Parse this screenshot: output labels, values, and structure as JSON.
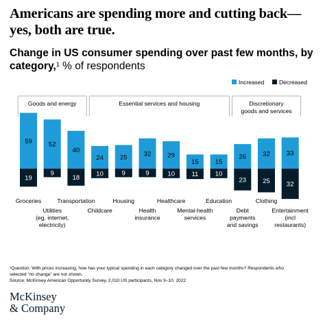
{
  "headline": "Americans are spending more and cutting back—yes, both are true.",
  "subtitle_bold": "Change in US consumer spending over past few months, by category,",
  "subtitle_sup": "1",
  "subtitle_unit": " % of respondents",
  "colors": {
    "increased": "#1f9bd9",
    "decreased": "#051c2c",
    "group_line": "#b5b5b5"
  },
  "chart_data": {
    "type": "bar",
    "stacked": "diverging",
    "legend_position": "top-right",
    "grid": false,
    "categories": [
      [
        "Groceries"
      ],
      [
        "Utilities",
        "(eg, internet,",
        "electricity)"
      ],
      [
        "Transportation"
      ],
      [
        "Childcare"
      ],
      [
        "Housing"
      ],
      [
        "Health",
        "insurance"
      ],
      [
        "Healthcare"
      ],
      [
        "Mental-health",
        "services"
      ],
      [
        "Education"
      ],
      [
        "Debt",
        "payments",
        "and savings"
      ],
      [
        "Clothing"
      ],
      [
        "Entertainment",
        "(incl",
        "restaurants)"
      ]
    ],
    "series": [
      {
        "name": "Increased",
        "values": [
          59,
          52,
          40,
          24,
          25,
          32,
          29,
          15,
          15,
          26,
          32,
          33
        ]
      },
      {
        "name": "Decreased",
        "values": [
          19,
          9,
          18,
          10,
          9,
          9,
          10,
          11,
          10,
          23,
          25,
          32
        ]
      }
    ],
    "groups": [
      {
        "label": [
          "Goods and energy"
        ],
        "start": 0,
        "end": 2
      },
      {
        "label": [
          "Essential services and housing"
        ],
        "start": 3,
        "end": 8
      },
      {
        "label": [
          "Discretionary",
          "goods and services"
        ],
        "start": 9,
        "end": 11
      }
    ]
  },
  "footnote": [
    "¹Question: With prices increasing, how has your typical spending in each category changed over the past few months? Respondents who",
    "selected “no change” are not shown.",
    "Source: McKinsey American Opportunity Survey, 2,010 US participants, Nov 9–10, 2022"
  ],
  "logo": [
    "McKinsey",
    "& Company"
  ]
}
